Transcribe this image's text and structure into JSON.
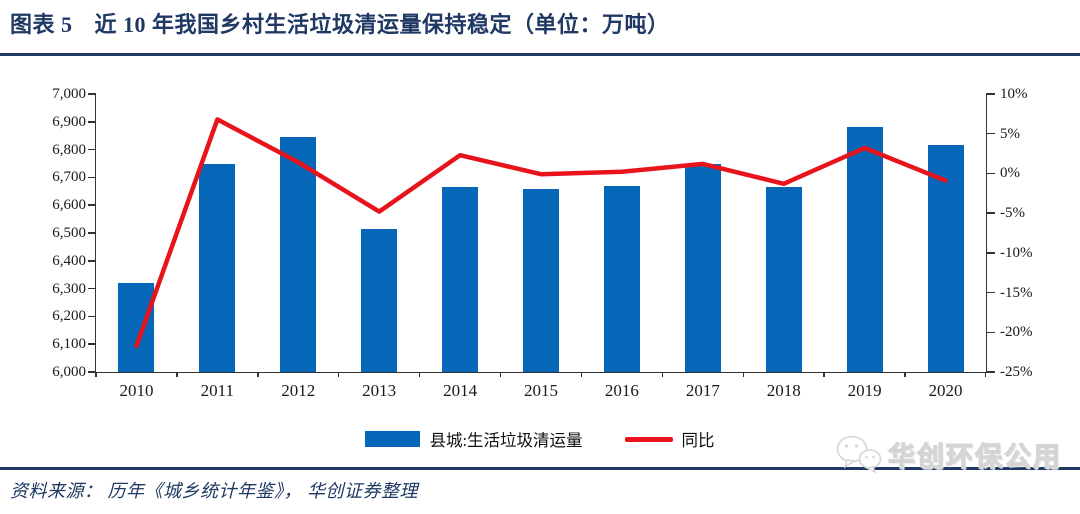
{
  "figure": {
    "label": "图表 5",
    "title": "近 10 年我国乡村生活垃圾清运量保持稳定（单位：万吨）",
    "source": "资料来源： 历年《城乡统计年鉴》， 华创证券整理",
    "watermark": "华创环保公用"
  },
  "colors": {
    "accent_navy": "#1F3864",
    "bar_blue": "#0667B8",
    "line_red": "#E8141C",
    "axis_line": "#333333",
    "watermark_gray": "#D5D5D5"
  },
  "chart_data": {
    "type": "bar+line",
    "title": "近 10 年我国乡村生活垃圾清运量保持稳定",
    "unit": "万吨",
    "categories": [
      "2010",
      "2011",
      "2012",
      "2013",
      "2014",
      "2015",
      "2016",
      "2017",
      "2018",
      "2019",
      "2020"
    ],
    "series": [
      {
        "name": "县城:生活垃圾清运量",
        "type": "bar",
        "axis": "left",
        "color": "#0667B8",
        "values": [
          6320,
          6750,
          6845,
          6515,
          6665,
          6660,
          6670,
          6750,
          6665,
          6880,
          6815
        ]
      },
      {
        "name": "同比",
        "type": "line",
        "axis": "right",
        "color": "#E8141C",
        "values": [
          -21.7,
          6.8,
          1.4,
          -4.8,
          2.3,
          -0.1,
          0.2,
          1.2,
          -1.3,
          3.2,
          -0.9
        ]
      }
    ],
    "left_axis": {
      "min": 6000,
      "max": 7000,
      "step": 100,
      "tick_labels": [
        "7,000",
        "6,900",
        "6,800",
        "6,700",
        "6,600",
        "6,500",
        "6,400",
        "6,300",
        "6,200",
        "6,100",
        "6,000"
      ]
    },
    "right_axis": {
      "min": -25,
      "max": 10,
      "step": 5,
      "tick_labels": [
        "10%",
        "5%",
        "0%",
        "-5%",
        "-10%",
        "-15%",
        "-20%",
        "-25%"
      ]
    },
    "gridlines": false,
    "legend_position": "bottom"
  }
}
